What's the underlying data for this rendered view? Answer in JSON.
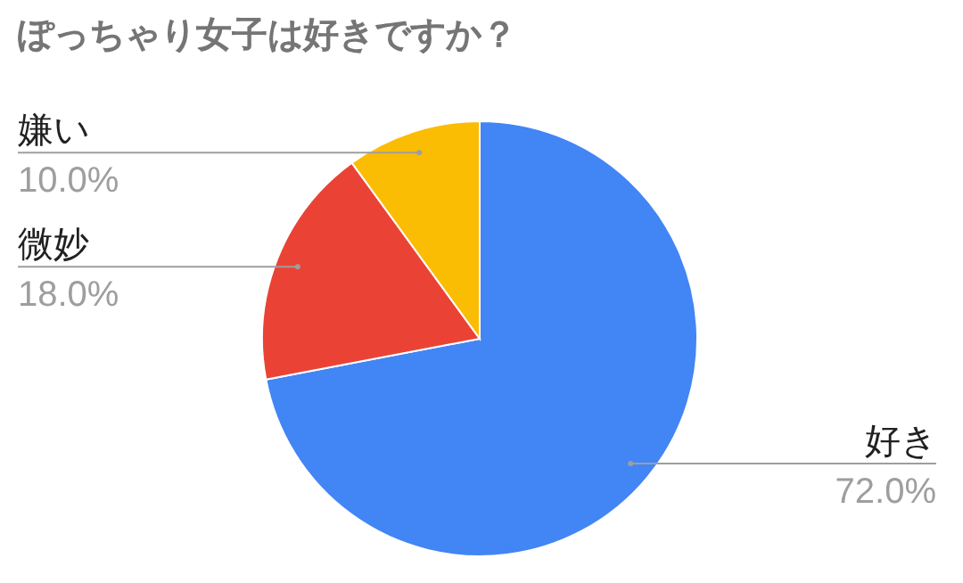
{
  "chart_data": {
    "type": "pie",
    "title": "ぽっちゃり女子は好きですか？",
    "categories": [
      "好き",
      "微妙",
      "嫌い"
    ],
    "values": [
      72.0,
      18.0,
      10.0
    ],
    "colors": [
      "#4285f4",
      "#ea4335",
      "#fbbc04"
    ],
    "value_labels": [
      "72.0%",
      "18.0%",
      "10.0%"
    ]
  }
}
